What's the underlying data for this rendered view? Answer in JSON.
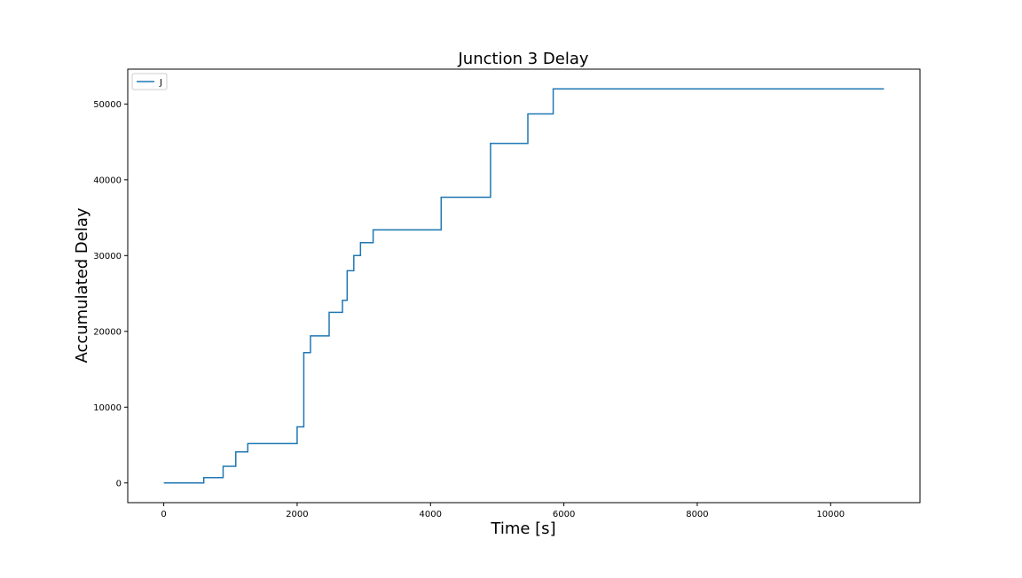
{
  "chart_data": {
    "type": "line",
    "title": "Junction 3 Delay",
    "xlabel": "Time [s]",
    "ylabel": "Accumulated Delay",
    "xlim": [
      -540,
      11340
    ],
    "ylim": [
      -2600,
      54600
    ],
    "xticks": [
      0,
      2000,
      4000,
      6000,
      8000,
      10000
    ],
    "yticks": [
      0,
      10000,
      20000,
      30000,
      40000,
      50000
    ],
    "grid": false,
    "legend": "top-left",
    "color": "#1f77b4",
    "step": "post",
    "series": [
      {
        "name": "J",
        "x": [
          0,
          600,
          890,
          1080,
          1260,
          2000,
          2100,
          2200,
          2480,
          2680,
          2750,
          2850,
          2950,
          3140,
          4160,
          4900,
          5460,
          5840,
          10800
        ],
        "values": [
          0,
          700,
          2200,
          4100,
          5200,
          7400,
          17200,
          19400,
          22500,
          24100,
          28000,
          30000,
          31700,
          33400,
          37700,
          44800,
          48700,
          52000,
          52000
        ]
      }
    ]
  }
}
